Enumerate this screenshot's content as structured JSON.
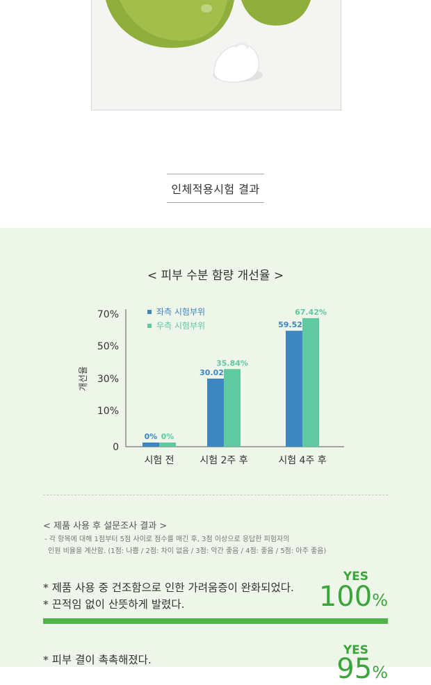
{
  "section_title": "인체적용시험 결과",
  "chart_data": {
    "type": "bar",
    "title": "< 피부 수분 함량 개선율 >",
    "ylabel": "개선율",
    "categories": [
      "시험 전",
      "시험 2주 후",
      "시험 4주 후"
    ],
    "yticks": [
      "0",
      "10%",
      "30%",
      "50%",
      "70%"
    ],
    "series": [
      {
        "name": "좌측 시험부위",
        "color": "#3d86c0",
        "values": [
          0,
          30.02,
          59.52
        ],
        "labels": [
          "0%",
          "30.02%",
          "59.52%"
        ]
      },
      {
        "name": "우측 시험부위",
        "color": "#5fc9a1",
        "values": [
          0,
          35.84,
          67.42
        ],
        "labels": [
          "0%",
          "35.84%",
          "67.42%"
        ]
      }
    ]
  },
  "survey": {
    "title": "< 제품 사용 후 설문조사 결과 >",
    "note_line1": "- 각 항목에 대해 1점부터 5점 사이로 점수를 매긴 후, 3점 이상으로 응답한 피험자의",
    "note_line2": "인원 비율을 계산함. (1점: 나쁨 / 2점: 차이 없음 / 3점: 악간 좋음 / 4점: 좋음 / 5점: 아주 좋음)",
    "items": [
      {
        "line1": "* 제품 사용 중 건조함으로 인한 가려움증이 완화되었다.",
        "line2": "* 끈적임 없이 산뜻하게 발렸다.",
        "yes": "YES",
        "value": "100",
        "unit": "%"
      },
      {
        "line1": "* 피부 결이 촉촉해졌다.",
        "yes": "YES",
        "value": "95",
        "unit": "%"
      }
    ]
  },
  "colors": {
    "accent": "#4fb24a",
    "panel": "#eef5e9"
  }
}
